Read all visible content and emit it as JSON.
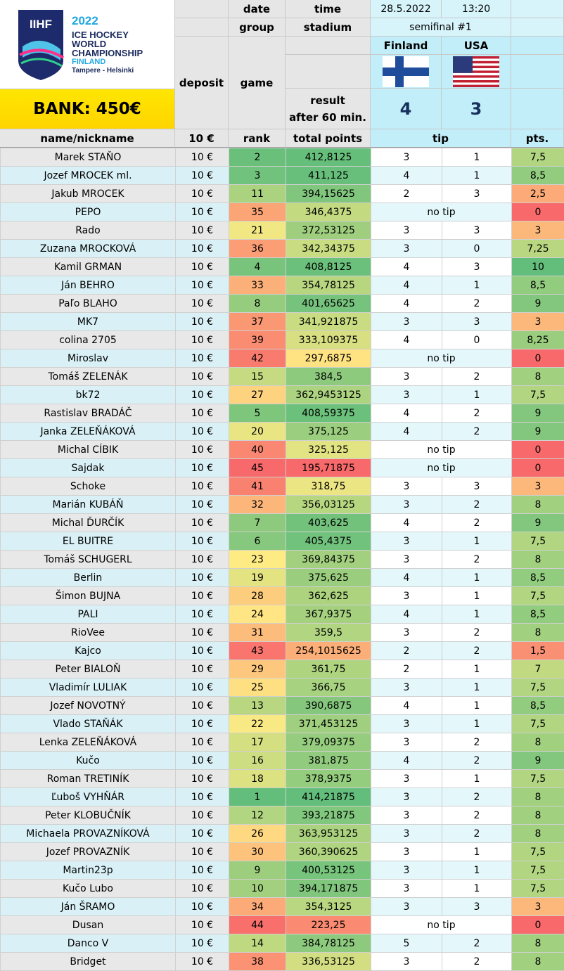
{
  "logo": {
    "brand": "IIHF",
    "year": "2022",
    "line1": "ICE HOCKEY",
    "line2": "WORLD",
    "line3": "CHAMPIONSHIP",
    "country": "FINLAND",
    "cities": "Tampere - Helsinki"
  },
  "bank": "BANK: 450€",
  "match": {
    "date_label": "date",
    "time_label": "time",
    "date": "28.5.2022",
    "time": "13:20",
    "group_label": "group",
    "stadium_label": "stadium",
    "stage": "semifinal #1",
    "deposit_label": "deposit",
    "game_label": "game",
    "result_label_1": "result",
    "result_label_2": "after 60 min.",
    "team_home": "Finland",
    "team_away": "USA",
    "score_home": "4",
    "score_away": "3"
  },
  "columns": {
    "name": "name/nickname",
    "deposit": "10 €",
    "rank": "rank",
    "points": "total points",
    "tip": "tip",
    "pts": "pts."
  },
  "rows": [
    {
      "name": "Marek STAŇO",
      "deposit": "10 €",
      "rank": "2",
      "total": "412,8125",
      "tip1": "3",
      "tip2": "1",
      "pts": "7,5"
    },
    {
      "name": "Jozef MROCEK ml.",
      "deposit": "10 €",
      "rank": "3",
      "total": "411,125",
      "tip1": "4",
      "tip2": "1",
      "pts": "8,5"
    },
    {
      "name": "Jakub MROCEK",
      "deposit": "10 €",
      "rank": "11",
      "total": "394,15625",
      "tip1": "2",
      "tip2": "3",
      "pts": "2,5"
    },
    {
      "name": "PEPO",
      "deposit": "10 €",
      "rank": "35",
      "total": "346,4375",
      "notip": "no tip",
      "pts": "0"
    },
    {
      "name": "Rado",
      "deposit": "10 €",
      "rank": "21",
      "total": "372,53125",
      "tip1": "3",
      "tip2": "3",
      "pts": "3"
    },
    {
      "name": "Zuzana MROCKOVÁ",
      "deposit": "10 €",
      "rank": "36",
      "total": "342,34375",
      "tip1": "3",
      "tip2": "0",
      "pts": "7,25"
    },
    {
      "name": "Kamil GRMAN",
      "deposit": "10 €",
      "rank": "4",
      "total": "408,8125",
      "tip1": "4",
      "tip2": "3",
      "pts": "10"
    },
    {
      "name": "Ján BEHRO",
      "deposit": "10 €",
      "rank": "33",
      "total": "354,78125",
      "tip1": "4",
      "tip2": "1",
      "pts": "8,5"
    },
    {
      "name": "Paľo BLAHO",
      "deposit": "10 €",
      "rank": "8",
      "total": "401,65625",
      "tip1": "4",
      "tip2": "2",
      "pts": "9"
    },
    {
      "name": "MK7",
      "deposit": "10 €",
      "rank": "37",
      "total": "341,921875",
      "tip1": "3",
      "tip2": "3",
      "pts": "3"
    },
    {
      "name": "colina 2705",
      "deposit": "10 €",
      "rank": "39",
      "total": "333,109375",
      "tip1": "4",
      "tip2": "0",
      "pts": "8,25"
    },
    {
      "name": "Miroslav",
      "deposit": "10 €",
      "rank": "42",
      "total": "297,6875",
      "notip": "no tip",
      "pts": "0"
    },
    {
      "name": "Tomáš ZELENÁK",
      "deposit": "10 €",
      "rank": "15",
      "total": "384,5",
      "tip1": "3",
      "tip2": "2",
      "pts": "8"
    },
    {
      "name": "bk72",
      "deposit": "10 €",
      "rank": "27",
      "total": "362,9453125",
      "tip1": "3",
      "tip2": "1",
      "pts": "7,5"
    },
    {
      "name": "Rastislav BRADÁČ",
      "deposit": "10 €",
      "rank": "5",
      "total": "408,59375",
      "tip1": "4",
      "tip2": "2",
      "pts": "9"
    },
    {
      "name": "Janka ZELEŇÁKOVÁ",
      "deposit": "10 €",
      "rank": "20",
      "total": "375,125",
      "tip1": "4",
      "tip2": "2",
      "pts": "9"
    },
    {
      "name": "Michal CÍBIK",
      "deposit": "10 €",
      "rank": "40",
      "total": "325,125",
      "notip": "no tip",
      "pts": "0"
    },
    {
      "name": "Sajdak",
      "deposit": "10 €",
      "rank": "45",
      "total": "195,71875",
      "notip": "no tip",
      "pts": "0"
    },
    {
      "name": "Schoke",
      "deposit": "10 €",
      "rank": "41",
      "total": "318,75",
      "tip1": "3",
      "tip2": "3",
      "pts": "3"
    },
    {
      "name": "Marián KUBÁŇ",
      "deposit": "10 €",
      "rank": "32",
      "total": "356,03125",
      "tip1": "3",
      "tip2": "2",
      "pts": "8"
    },
    {
      "name": "Michal ĎURČÍK",
      "deposit": "10 €",
      "rank": "7",
      "total": "403,625",
      "tip1": "4",
      "tip2": "2",
      "pts": "9"
    },
    {
      "name": "EL BUITRE",
      "deposit": "10 €",
      "rank": "6",
      "total": "405,4375",
      "tip1": "3",
      "tip2": "1",
      "pts": "7,5"
    },
    {
      "name": "Tomáš SCHUGERL",
      "deposit": "10 €",
      "rank": "23",
      "total": "369,84375",
      "tip1": "3",
      "tip2": "2",
      "pts": "8"
    },
    {
      "name": "Berlin",
      "deposit": "10 €",
      "rank": "19",
      "total": "375,625",
      "tip1": "4",
      "tip2": "1",
      "pts": "8,5"
    },
    {
      "name": "Šimon BUJNA",
      "deposit": "10 €",
      "rank": "28",
      "total": "362,625",
      "tip1": "3",
      "tip2": "1",
      "pts": "7,5"
    },
    {
      "name": "PALI",
      "deposit": "10 €",
      "rank": "24",
      "total": "367,9375",
      "tip1": "4",
      "tip2": "1",
      "pts": "8,5"
    },
    {
      "name": "RioVee",
      "deposit": "10 €",
      "rank": "31",
      "total": "359,5",
      "tip1": "3",
      "tip2": "2",
      "pts": "8"
    },
    {
      "name": "Kajco",
      "deposit": "10 €",
      "rank": "43",
      "total": "254,1015625",
      "tip1": "2",
      "tip2": "2",
      "pts": "1,5"
    },
    {
      "name": "Peter BIALOŇ",
      "deposit": "10 €",
      "rank": "29",
      "total": "361,75",
      "tip1": "2",
      "tip2": "1",
      "pts": "7"
    },
    {
      "name": "Vladimír LULIAK",
      "deposit": "10 €",
      "rank": "25",
      "total": "366,75",
      "tip1": "3",
      "tip2": "1",
      "pts": "7,5"
    },
    {
      "name": "Jozef NOVOTNÝ",
      "deposit": "10 €",
      "rank": "13",
      "total": "390,6875",
      "tip1": "4",
      "tip2": "1",
      "pts": "8,5"
    },
    {
      "name": "Vlado STAŇÁK",
      "deposit": "10 €",
      "rank": "22",
      "total": "371,453125",
      "tip1": "3",
      "tip2": "1",
      "pts": "7,5"
    },
    {
      "name": "Lenka ZELEŇÁKOVÁ",
      "deposit": "10 €",
      "rank": "17",
      "total": "379,09375",
      "tip1": "3",
      "tip2": "2",
      "pts": "8"
    },
    {
      "name": "Kučo",
      "deposit": "10 €",
      "rank": "16",
      "total": "381,875",
      "tip1": "4",
      "tip2": "2",
      "pts": "9"
    },
    {
      "name": "Roman TRETINÍK",
      "deposit": "10 €",
      "rank": "18",
      "total": "378,9375",
      "tip1": "3",
      "tip2": "1",
      "pts": "7,5"
    },
    {
      "name": "Ľuboš VYHŇÁR",
      "deposit": "10 €",
      "rank": "1",
      "total": "414,21875",
      "tip1": "3",
      "tip2": "2",
      "pts": "8"
    },
    {
      "name": "Peter KLOBUČNÍK",
      "deposit": "10 €",
      "rank": "12",
      "total": "393,21875",
      "tip1": "3",
      "tip2": "2",
      "pts": "8"
    },
    {
      "name": "Michaela PROVAZNÍKOVÁ",
      "deposit": "10 €",
      "rank": "26",
      "total": "363,953125",
      "tip1": "3",
      "tip2": "2",
      "pts": "8"
    },
    {
      "name": "Jozef PROVAZNÍK",
      "deposit": "10 €",
      "rank": "30",
      "total": "360,390625",
      "tip1": "3",
      "tip2": "1",
      "pts": "7,5"
    },
    {
      "name": "Martin23p",
      "deposit": "10 €",
      "rank": "9",
      "total": "400,53125",
      "tip1": "3",
      "tip2": "1",
      "pts": "7,5"
    },
    {
      "name": "Kučo Lubo",
      "deposit": "10 €",
      "rank": "10",
      "total": "394,171875",
      "tip1": "3",
      "tip2": "1",
      "pts": "7,5"
    },
    {
      "name": "Ján ŠRAMO",
      "deposit": "10 €",
      "rank": "34",
      "total": "354,3125",
      "tip1": "3",
      "tip2": "3",
      "pts": "3"
    },
    {
      "name": "Dusan",
      "deposit": "10 €",
      "rank": "44",
      "total": "223,25",
      "notip": "no tip",
      "pts": "0"
    },
    {
      "name": "Danco V",
      "deposit": "10 €",
      "rank": "14",
      "total": "384,78125",
      "tip1": "5",
      "tip2": "2",
      "pts": "8"
    },
    {
      "name": "Bridget",
      "deposit": "10 €",
      "rank": "38",
      "total": "336,53125",
      "tip1": "3",
      "tip2": "2",
      "pts": "8"
    }
  ]
}
